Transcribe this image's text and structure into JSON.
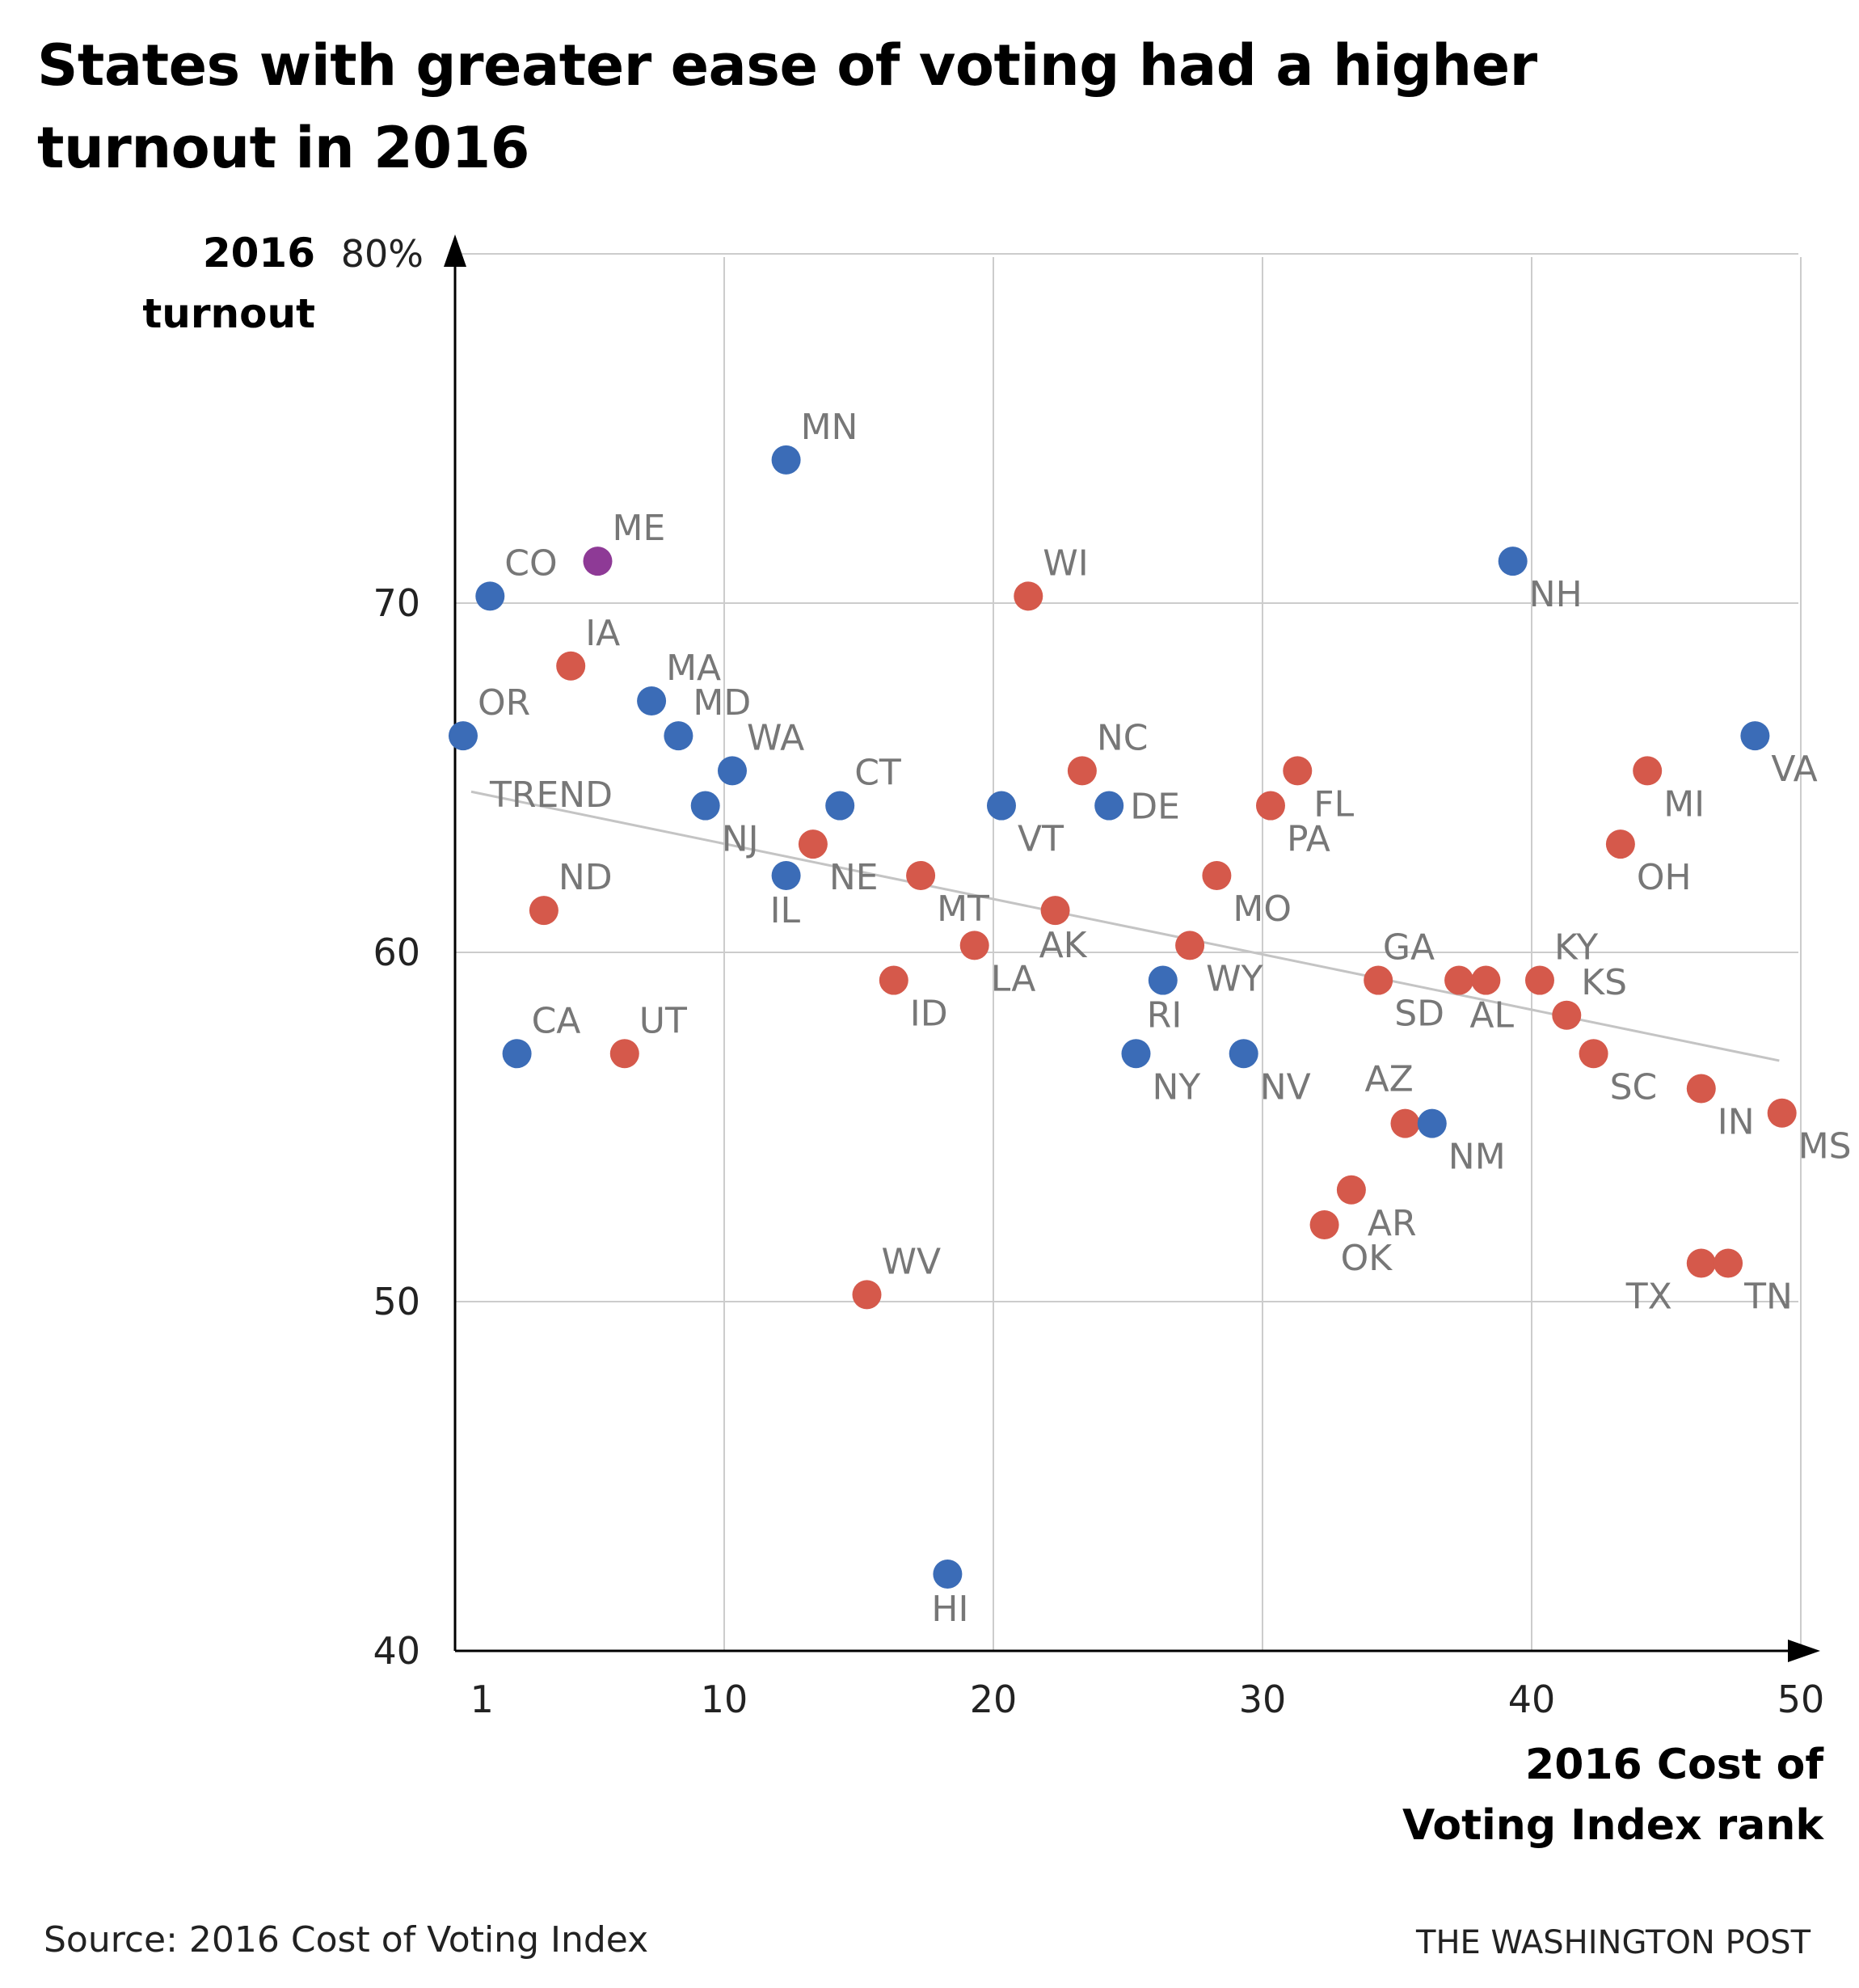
{
  "title": "States with greater ease of voting had a higher turnout in 2016",
  "source": "Source: 2016 Cost of Voting Index",
  "credit": "THE WASHINGTON POST",
  "colors": {
    "democrat": "#3b6cb7",
    "republican": "#d5594b",
    "split": "#8e3a96",
    "trend": "#c4c4c4",
    "grid": "#cccccc",
    "label": "#777777"
  },
  "chart_data": {
    "type": "scatter",
    "title": "States with greater ease of voting had a higher turnout in 2016",
    "xlabel": "2016 Cost of Voting Index rank",
    "ylabel": "2016 turnout",
    "ylabel_lines": [
      "2016",
      "turnout"
    ],
    "xlabel_lines": [
      "2016 Cost of",
      "Voting Index rank"
    ],
    "xlim": [
      0,
      50
    ],
    "ylim": [
      40,
      80
    ],
    "xticks": [
      {
        "value": 1,
        "label": "1"
      },
      {
        "value": 10,
        "label": "10"
      },
      {
        "value": 20,
        "label": "20"
      },
      {
        "value": 30,
        "label": "30"
      },
      {
        "value": 40,
        "label": "40"
      },
      {
        "value": 50,
        "label": "50"
      }
    ],
    "yticks": [
      {
        "value": 40,
        "label": "40"
      },
      {
        "value": 50,
        "label": "50"
      },
      {
        "value": 60,
        "label": "60"
      },
      {
        "value": 70,
        "label": "70"
      },
      {
        "value": 80,
        "label": "80%"
      }
    ],
    "grid": true,
    "trend": {
      "label": "TREND",
      "x1": 0.6,
      "y1": 64.6,
      "x2": 49.2,
      "y2": 56.9
    },
    "points": [
      {
        "state": "OR",
        "x": 0.3,
        "y": 66.2,
        "party": "democrat",
        "pos": "ne"
      },
      {
        "state": "CO",
        "x": 1.3,
        "y": 70.2,
        "party": "democrat",
        "pos": "ne"
      },
      {
        "state": "CA",
        "x": 2.3,
        "y": 57.1,
        "party": "democrat",
        "pos": "ne"
      },
      {
        "state": "ND",
        "x": 3.3,
        "y": 61.2,
        "party": "republican",
        "pos": "ne"
      },
      {
        "state": "IA",
        "x": 4.3,
        "y": 68.2,
        "party": "republican",
        "pos": "ne"
      },
      {
        "state": "ME",
        "x": 5.3,
        "y": 71.2,
        "party": "split",
        "pos": "ne"
      },
      {
        "state": "UT",
        "x": 6.3,
        "y": 57.1,
        "party": "republican",
        "pos": "ne"
      },
      {
        "state": "MA",
        "x": 7.3,
        "y": 67.2,
        "party": "democrat",
        "pos": "ne"
      },
      {
        "state": "MD",
        "x": 8.3,
        "y": 66.2,
        "party": "democrat",
        "pos": "ne"
      },
      {
        "state": "NJ",
        "x": 9.3,
        "y": 64.2,
        "party": "democrat",
        "pos": "se"
      },
      {
        "state": "WA",
        "x": 10.3,
        "y": 65.2,
        "party": "democrat",
        "pos": "ne"
      },
      {
        "state": "MN",
        "x": 12.3,
        "y": 74.1,
        "party": "democrat",
        "pos": "ne"
      },
      {
        "state": "IL",
        "x": 12.3,
        "y": 62.2,
        "party": "democrat",
        "pos": "s"
      },
      {
        "state": "NE",
        "x": 13.3,
        "y": 63.1,
        "party": "republican",
        "pos": "se"
      },
      {
        "state": "CT",
        "x": 14.3,
        "y": 64.2,
        "party": "democrat",
        "pos": "ne"
      },
      {
        "state": "WV",
        "x": 15.3,
        "y": 50.2,
        "party": "republican",
        "pos": "ne",
        "labelColor": "#d5594b"
      },
      {
        "state": "ID",
        "x": 16.3,
        "y": 59.2,
        "party": "republican",
        "pos": "se"
      },
      {
        "state": "MT",
        "x": 17.3,
        "y": 62.2,
        "party": "republican",
        "pos": "se"
      },
      {
        "state": "HI",
        "x": 18.3,
        "y": 42.2,
        "party": "democrat",
        "pos": "s"
      },
      {
        "state": "LA",
        "x": 19.3,
        "y": 60.2,
        "party": "republican",
        "pos": "se"
      },
      {
        "state": "VT",
        "x": 20.3,
        "y": 64.2,
        "party": "democrat",
        "pos": "se"
      },
      {
        "state": "WI",
        "x": 21.3,
        "y": 70.2,
        "party": "republican",
        "pos": "ne"
      },
      {
        "state": "AK",
        "x": 22.3,
        "y": 61.2,
        "party": "republican",
        "pos": "s"
      },
      {
        "state": "NC",
        "x": 23.3,
        "y": 65.2,
        "party": "republican",
        "pos": "ne"
      },
      {
        "state": "DE",
        "x": 24.3,
        "y": 64.2,
        "party": "democrat",
        "pos": "e"
      },
      {
        "state": "NY",
        "x": 25.3,
        "y": 57.1,
        "party": "democrat",
        "pos": "se"
      },
      {
        "state": "RI",
        "x": 26.3,
        "y": 59.2,
        "party": "democrat",
        "pos": "s"
      },
      {
        "state": "WY",
        "x": 27.3,
        "y": 60.2,
        "party": "republican",
        "pos": "se"
      },
      {
        "state": "MO",
        "x": 28.3,
        "y": 62.2,
        "party": "republican",
        "pos": "se"
      },
      {
        "state": "NV",
        "x": 29.3,
        "y": 57.1,
        "party": "democrat",
        "pos": "se"
      },
      {
        "state": "PA",
        "x": 30.3,
        "y": 64.2,
        "party": "republican",
        "pos": "se"
      },
      {
        "state": "FL",
        "x": 31.3,
        "y": 65.2,
        "party": "republican",
        "pos": "se"
      },
      {
        "state": "OK",
        "x": 32.3,
        "y": 52.2,
        "party": "republican",
        "pos": "se"
      },
      {
        "state": "AR",
        "x": 33.3,
        "y": 53.2,
        "party": "republican",
        "pos": "se"
      },
      {
        "state": "SD",
        "x": 34.3,
        "y": 59.2,
        "party": "republican",
        "pos": "se"
      },
      {
        "state": "AZ",
        "x": 35.3,
        "y": 55.1,
        "party": "republican",
        "pos": "n"
      },
      {
        "state": "NM",
        "x": 36.3,
        "y": 55.1,
        "party": "democrat",
        "pos": "se"
      },
      {
        "state": "GA",
        "x": 37.3,
        "y": 59.2,
        "party": "republican",
        "pos": "nw"
      },
      {
        "state": "AL",
        "x": 38.3,
        "y": 59.2,
        "party": "republican",
        "pos": "s"
      },
      {
        "state": "NH",
        "x": 39.3,
        "y": 71.2,
        "party": "democrat",
        "pos": "se"
      },
      {
        "state": "KY",
        "x": 40.3,
        "y": 59.2,
        "party": "republican",
        "pos": "ne"
      },
      {
        "state": "KS",
        "x": 41.3,
        "y": 58.2,
        "party": "republican",
        "pos": "ne"
      },
      {
        "state": "SC",
        "x": 42.3,
        "y": 57.1,
        "party": "republican",
        "pos": "se"
      },
      {
        "state": "OH",
        "x": 43.3,
        "y": 63.1,
        "party": "republican",
        "pos": "se"
      },
      {
        "state": "MI",
        "x": 44.3,
        "y": 65.2,
        "party": "republican",
        "pos": "se"
      },
      {
        "state": "IN",
        "x": 46.3,
        "y": 56.1,
        "party": "republican",
        "pos": "se"
      },
      {
        "state": "TX",
        "x": 46.3,
        "y": 51.1,
        "party": "republican",
        "pos": "sw"
      },
      {
        "state": "TN",
        "x": 47.3,
        "y": 51.1,
        "party": "republican",
        "pos": "se"
      },
      {
        "state": "VA",
        "x": 48.3,
        "y": 66.2,
        "party": "democrat",
        "pos": "se"
      },
      {
        "state": "MS",
        "x": 49.3,
        "y": 55.4,
        "party": "republican",
        "pos": "se"
      }
    ]
  }
}
